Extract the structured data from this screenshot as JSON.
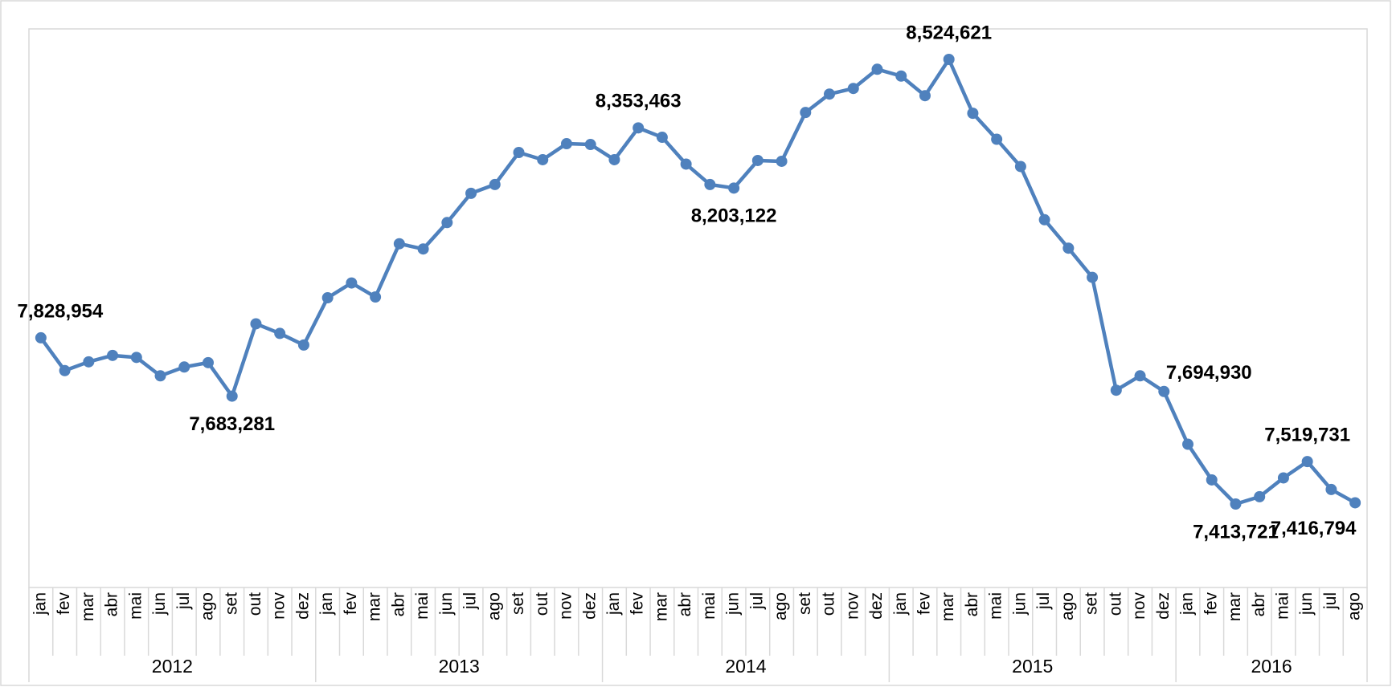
{
  "chart_data": {
    "type": "line",
    "categories": [
      "jan",
      "fev",
      "mar",
      "abr",
      "mai",
      "jun",
      "jul",
      "ago",
      "set",
      "out",
      "nov",
      "dez",
      "jan",
      "fev",
      "mar",
      "abr",
      "mai",
      "jun",
      "jul",
      "ago",
      "set",
      "out",
      "nov",
      "dez",
      "jan",
      "fev",
      "mar",
      "abr",
      "mai",
      "jun",
      "jul",
      "ago",
      "set",
      "out",
      "nov",
      "dez",
      "jan",
      "fev",
      "mar",
      "abr",
      "mai",
      "jun",
      "jul",
      "ago",
      "set",
      "out",
      "nov",
      "dez",
      "jan",
      "fev",
      "mar",
      "abr",
      "mai",
      "jun",
      "jul",
      "ago"
    ],
    "groups": [
      "2012",
      "2013",
      "2014",
      "2015",
      "2016"
    ],
    "color": "#4f81bd",
    "values": [
      7828954,
      7747000,
      7769000,
      7785000,
      7780000,
      7734000,
      7756000,
      7767000,
      7683281,
      7864000,
      7840000,
      7811000,
      7929000,
      7966000,
      7931000,
      8064000,
      8051000,
      8117000,
      8190000,
      8212000,
      8292000,
      8274000,
      8314000,
      8312000,
      8274000,
      8353463,
      8330000,
      8263000,
      8212000,
      8203122,
      8272000,
      8270000,
      8392000,
      8438000,
      8452000,
      8500000,
      8483000,
      8434000,
      8524621,
      8390000,
      8325000,
      8257000,
      8124000,
      8053000,
      7980000,
      7698000,
      7734000,
      7694930,
      7563000,
      7474000,
      7413721,
      7432000,
      7479000,
      7519731,
      7450000,
      7416794
    ],
    "value_labels": [
      "7,828,954",
      null,
      null,
      null,
      null,
      null,
      null,
      null,
      "7,683,281",
      null,
      null,
      null,
      null,
      null,
      null,
      null,
      null,
      null,
      null,
      null,
      null,
      null,
      null,
      null,
      null,
      "8,353,463",
      null,
      null,
      null,
      "8,203,122",
      null,
      null,
      null,
      null,
      null,
      null,
      null,
      null,
      "8,524,621",
      null,
      null,
      null,
      null,
      null,
      null,
      null,
      null,
      "7,694,930",
      null,
      null,
      "7,413,721",
      null,
      null,
      "7,519,731",
      null,
      "7,416,794"
    ]
  }
}
